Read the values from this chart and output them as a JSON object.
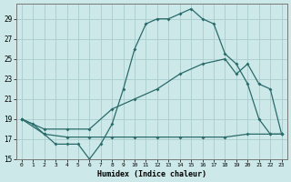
{
  "xlabel": "Humidex (Indice chaleur)",
  "bg_color": "#cce8e8",
  "grid_color": "#aacccc",
  "line_color": "#2a6b6b",
  "xlim": [
    -0.5,
    23.5
  ],
  "ylim": [
    15,
    30.5
  ],
  "xticks": [
    0,
    1,
    2,
    3,
    4,
    5,
    6,
    7,
    8,
    9,
    10,
    11,
    12,
    13,
    14,
    15,
    16,
    17,
    18,
    19,
    20,
    21,
    22,
    23
  ],
  "yticks": [
    15,
    17,
    19,
    21,
    23,
    25,
    27,
    29
  ],
  "curve1_x": [
    0,
    1,
    2,
    3,
    4,
    5,
    6,
    7,
    8,
    9,
    10,
    11,
    12,
    13,
    14,
    15,
    16,
    17,
    18,
    19,
    20,
    21,
    22,
    23
  ],
  "curve1_y": [
    19,
    18.5,
    17.5,
    16.5,
    16.5,
    16.5,
    15.0,
    16.5,
    18.5,
    22.0,
    26.0,
    28.5,
    29.0,
    29.0,
    29.5,
    30.0,
    29.0,
    28.5,
    25.5,
    24.5,
    22.5,
    19.0,
    17.5,
    17.5
  ],
  "curve2_x": [
    0,
    2,
    4,
    6,
    8,
    10,
    12,
    14,
    16,
    18,
    19,
    20,
    21,
    22,
    23
  ],
  "curve2_y": [
    19,
    18,
    18,
    18,
    20,
    21,
    22,
    23.5,
    24.5,
    25.0,
    23.5,
    24.5,
    22.5,
    22.0,
    17.5
  ],
  "curve3_x": [
    0,
    2,
    4,
    6,
    8,
    10,
    12,
    14,
    16,
    18,
    20,
    22,
    23
  ],
  "curve3_y": [
    19,
    17.5,
    17.2,
    17.2,
    17.2,
    17.2,
    17.2,
    17.2,
    17.2,
    17.2,
    17.5,
    17.5,
    17.5
  ]
}
